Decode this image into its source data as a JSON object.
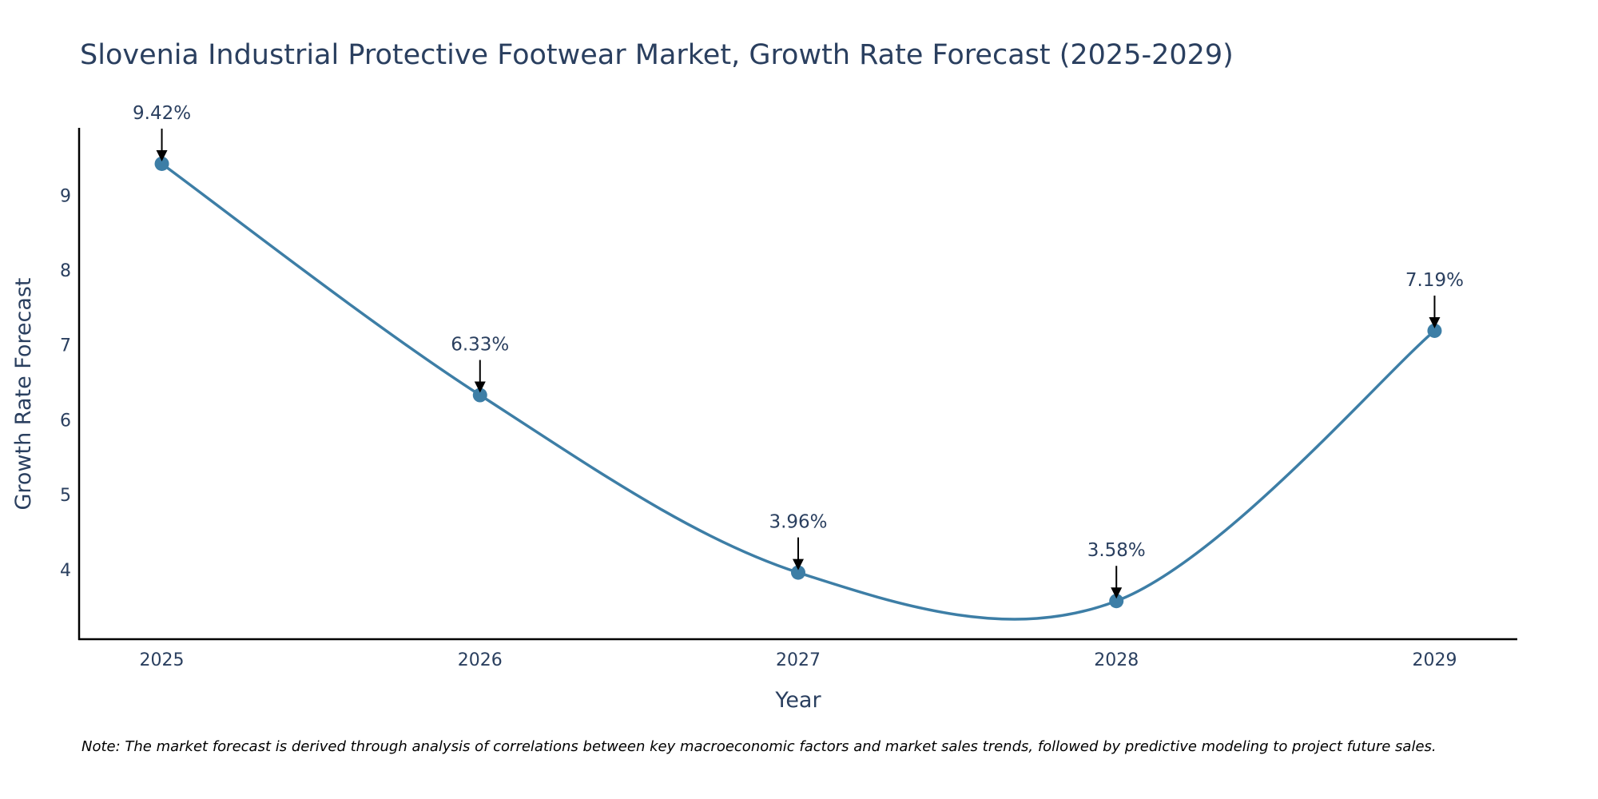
{
  "chart_data": {
    "type": "line",
    "title": "Slovenia Industrial Protective Footwear Market, Growth Rate Forecast (2025-2029)",
    "xlabel": "Year",
    "ylabel": "Growth Rate Forecast",
    "categories": [
      "2025",
      "2026",
      "2027",
      "2028",
      "2029"
    ],
    "values": [
      9.42,
      6.33,
      3.96,
      3.58,
      7.19
    ],
    "data_labels": [
      "9.42%",
      "6.33%",
      "3.96%",
      "3.58%",
      "7.19%"
    ],
    "yticks": [
      4,
      5,
      6,
      7,
      8,
      9
    ],
    "ytick_labels": [
      "4",
      "5",
      "6",
      "7",
      "8",
      "9"
    ],
    "ylim": [
      3.07,
      9.9
    ],
    "xlim": [
      2024.74,
      2029.26
    ],
    "line_shape": "spline",
    "grid": false,
    "legend": "none",
    "line_color": "#3d7ea6",
    "marker_color": "#3d7ea6",
    "arrow_color": "#000000",
    "text_color": "#2a3f5f"
  },
  "note": "Note: The market forecast is derived through analysis of correlations between key macroeconomic factors and market sales trends, followed by predictive modeling to project future sales."
}
